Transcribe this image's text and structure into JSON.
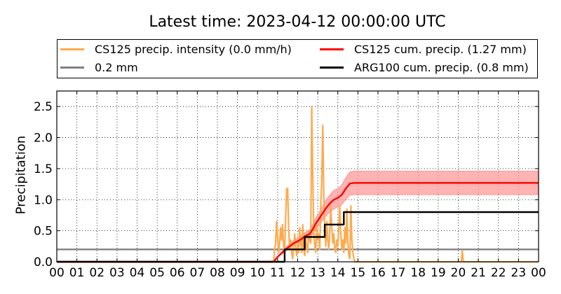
{
  "chart_data": {
    "type": "line",
    "title": "Latest time: 2023-04-12 00:00:00 UTC",
    "xlabel": "",
    "ylabel": "Precipitation",
    "xlim": [
      0,
      24
    ],
    "ylim": [
      0,
      2.75
    ],
    "grid": true,
    "legend_position": "top",
    "xticks": [
      "00",
      "01",
      "02",
      "03",
      "04",
      "05",
      "06",
      "07",
      "08",
      "09",
      "10",
      "11",
      "12",
      "13",
      "14",
      "15",
      "16",
      "17",
      "18",
      "19",
      "20",
      "21",
      "22",
      "23",
      "00"
    ],
    "yticks": [
      "0.0",
      "0.5",
      "1.0",
      "1.5",
      "2.0",
      "2.5"
    ],
    "ytick_values": [
      0,
      0.5,
      1.0,
      1.5,
      2.0,
      2.5
    ],
    "series": [
      {
        "name": "CS125 precip. intensity (0.0 mm/h)",
        "color": "#ffaa4d",
        "x": [
          0,
          10.8,
          10.85,
          10.9,
          10.95,
          11.0,
          11.05,
          11.1,
          11.15,
          11.2,
          11.25,
          11.3,
          11.35,
          11.4,
          11.45,
          11.5,
          11.55,
          11.6,
          11.65,
          11.7,
          11.75,
          11.8,
          11.85,
          11.9,
          11.95,
          12.0,
          12.05,
          12.1,
          12.15,
          12.2,
          12.25,
          12.3,
          12.35,
          12.4,
          12.45,
          12.5,
          12.55,
          12.6,
          12.65,
          12.7,
          12.75,
          12.8,
          12.85,
          12.9,
          12.95,
          13.0,
          13.05,
          13.1,
          13.15,
          13.2,
          13.25,
          13.3,
          13.35,
          13.4,
          13.45,
          13.5,
          13.55,
          13.6,
          13.65,
          13.7,
          13.75,
          13.8,
          13.85,
          13.9,
          13.95,
          14.0,
          14.05,
          14.1,
          14.15,
          14.2,
          14.25,
          14.3,
          14.35,
          14.4,
          14.45,
          14.5,
          14.55,
          14.6,
          14.65,
          14.7,
          14.75,
          14.8,
          14.85,
          20.15,
          20.2,
          20.25,
          24
        ],
        "y": [
          0,
          0,
          0.2,
          0.3,
          0.65,
          0.4,
          0.15,
          0.3,
          0.55,
          0.35,
          0.6,
          0.25,
          0.1,
          0.7,
          1.18,
          1.18,
          0.55,
          0.2,
          0.35,
          0.15,
          0.05,
          0.2,
          0.45,
          0.25,
          0.1,
          0.25,
          0.15,
          0.55,
          0.3,
          0.15,
          0.6,
          0.2,
          0.1,
          0.35,
          0.25,
          0.15,
          0.5,
          0.35,
          0.3,
          2.5,
          1.4,
          0.5,
          0.25,
          0.15,
          0.6,
          0.35,
          0.45,
          0.2,
          0.9,
          1.3,
          2.2,
          1.1,
          0.55,
          0.25,
          0.65,
          0.35,
          0.2,
          0.5,
          0.9,
          0.55,
          0.3,
          0.45,
          0.2,
          0.15,
          0.35,
          0.25,
          0.6,
          0.9,
          0.45,
          0.2,
          0.35,
          0.15,
          0.55,
          0.3,
          0.85,
          0.3,
          0.1,
          0.05,
          0.9,
          0.35,
          0.15,
          0.05,
          0,
          0,
          0.18,
          0,
          0
        ]
      },
      {
        "name": "0.2 mm",
        "color": "#808080",
        "x": [
          0,
          24
        ],
        "y": [
          0.2,
          0.2
        ]
      },
      {
        "name": "CS125 cum. precip. (1.27 mm)",
        "color": "#ff0000",
        "x": [
          0,
          10.8,
          11.0,
          11.2,
          11.4,
          11.6,
          11.8,
          12.0,
          12.2,
          12.4,
          12.6,
          12.8,
          12.9,
          13.0,
          13.2,
          13.4,
          13.6,
          13.8,
          14.0,
          14.2,
          14.4,
          14.6,
          14.8,
          15.0,
          24
        ],
        "y": [
          0,
          0,
          0.08,
          0.14,
          0.2,
          0.25,
          0.3,
          0.33,
          0.37,
          0.42,
          0.45,
          0.55,
          0.62,
          0.66,
          0.76,
          0.86,
          0.94,
          1.0,
          1.03,
          1.08,
          1.18,
          1.26,
          1.27,
          1.27,
          1.27
        ],
        "band_low": [
          0,
          0,
          0.07,
          0.12,
          0.17,
          0.21,
          0.26,
          0.28,
          0.31,
          0.36,
          0.38,
          0.47,
          0.53,
          0.56,
          0.65,
          0.73,
          0.8,
          0.85,
          0.88,
          0.92,
          1.0,
          1.07,
          1.08,
          1.08,
          1.08
        ],
        "band_high": [
          0,
          0,
          0.09,
          0.16,
          0.23,
          0.29,
          0.35,
          0.38,
          0.43,
          0.48,
          0.52,
          0.63,
          0.71,
          0.76,
          0.87,
          0.99,
          1.08,
          1.15,
          1.18,
          1.24,
          1.36,
          1.45,
          1.46,
          1.46,
          1.46
        ],
        "band_color": "#ff9999"
      },
      {
        "name": "ARG100 cum. precip. (0.8 mm)",
        "color": "#000000",
        "x": [
          0,
          11.35,
          11.35,
          12.35,
          12.35,
          13.35,
          13.35,
          14.3,
          14.3,
          24
        ],
        "y": [
          0,
          0,
          0.2,
          0.2,
          0.4,
          0.4,
          0.6,
          0.6,
          0.8,
          0.8
        ]
      }
    ]
  }
}
